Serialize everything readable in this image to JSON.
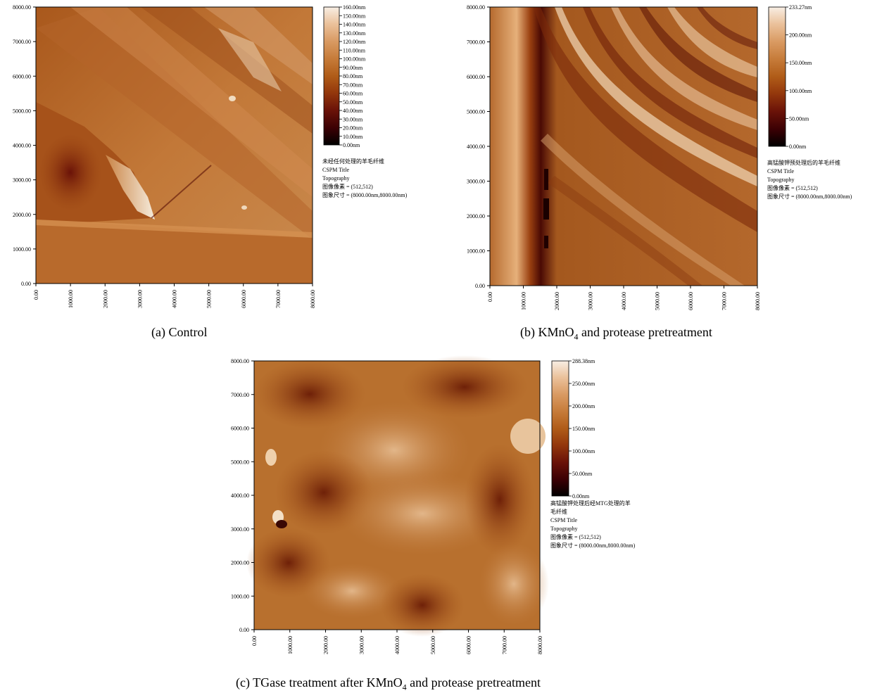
{
  "panels": [
    {
      "id": "a",
      "caption_parts": [
        "(a) Control"
      ],
      "y_ticks": [
        "8000.00",
        "7000.00",
        "6000.00",
        "5000.00",
        "4000.00",
        "3000.00",
        "2000.00",
        "1000.00",
        "0.00"
      ],
      "x_ticks": [
        "0.00",
        "1000.00",
        "2000.00",
        "3000.00",
        "4000.00",
        "5000.00",
        "6000.00",
        "7000.00",
        "8000.00"
      ],
      "scale_ticks": [
        "160.00nm",
        "150.00nm",
        "140.00nm",
        "130.00nm",
        "120.00nm",
        "110.00nm",
        "100.00nm",
        "90.00nm",
        "80.00nm",
        "70.00nm",
        "60.00nm",
        "50.00nm",
        "40.00nm",
        "30.00nm",
        "20.00nm",
        "10.00nm",
        "0.00nm"
      ],
      "info_lines": [
        "未经任何处理的羊毛纤维",
        "CSPM Title",
        "Topography",
        "图像像素 = (512,512)",
        "图象尺寸 = (8000.00nm,8000.00nm)"
      ]
    },
    {
      "id": "b",
      "caption_parts": [
        "(b) KMnO",
        "4",
        " and protease pretreatment"
      ],
      "y_ticks": [
        "8000.00",
        "7000.00",
        "6000.00",
        "5000.00",
        "4000.00",
        "3000.00",
        "2000.00",
        "1000.00",
        "0.00"
      ],
      "x_ticks": [
        "0.00",
        "1000.00",
        "2000.00",
        "3000.00",
        "4000.00",
        "5000.00",
        "6000.00",
        "7000.00",
        "8000.00"
      ],
      "scale_ticks": [
        "233.27nm",
        "200.00nm",
        "150.00nm",
        "100.00nm",
        "50.00nm",
        "0.00nm"
      ],
      "info_lines": [
        "高锰酸钾预处理后的羊毛纤维",
        "CSPM Title",
        "Topography",
        "图像像素 = (512,512)",
        "图象尺寸 = (8000.00nm,8000.00nm)"
      ]
    },
    {
      "id": "c",
      "caption_parts": [
        "(c) TGase treatment after KMnO",
        "4",
        " and protease pretreatment"
      ],
      "y_ticks": [
        "8000.00",
        "7000.00",
        "6000.00",
        "5000.00",
        "4000.00",
        "3000.00",
        "2000.00",
        "1000.00",
        "0.00"
      ],
      "x_ticks": [
        "0.00",
        "1000.00",
        "2000.00",
        "3000.00",
        "4000.00",
        "5000.00",
        "6000.00",
        "7000.00",
        "8000.00"
      ],
      "scale_ticks": [
        "288.38nm",
        "250.00nm",
        "200.00nm",
        "150.00nm",
        "100.00nm",
        "50.00nm",
        "0.00nm"
      ],
      "info_lines": [
        "高锰酸钾处理后经MTG处理的羊",
        "毛纤维",
        "CSPM Title",
        "Topography",
        "图像像素 = (512,512)",
        "图象尺寸 = (8000.00nm,8000.00nm)"
      ]
    }
  ],
  "colors": {
    "colormap": [
      "#000000",
      "#3a0004",
      "#6a1208",
      "#94380c",
      "#b05c18",
      "#c57a38",
      "#d99a62",
      "#ebc29c",
      "#f8eee4"
    ]
  }
}
